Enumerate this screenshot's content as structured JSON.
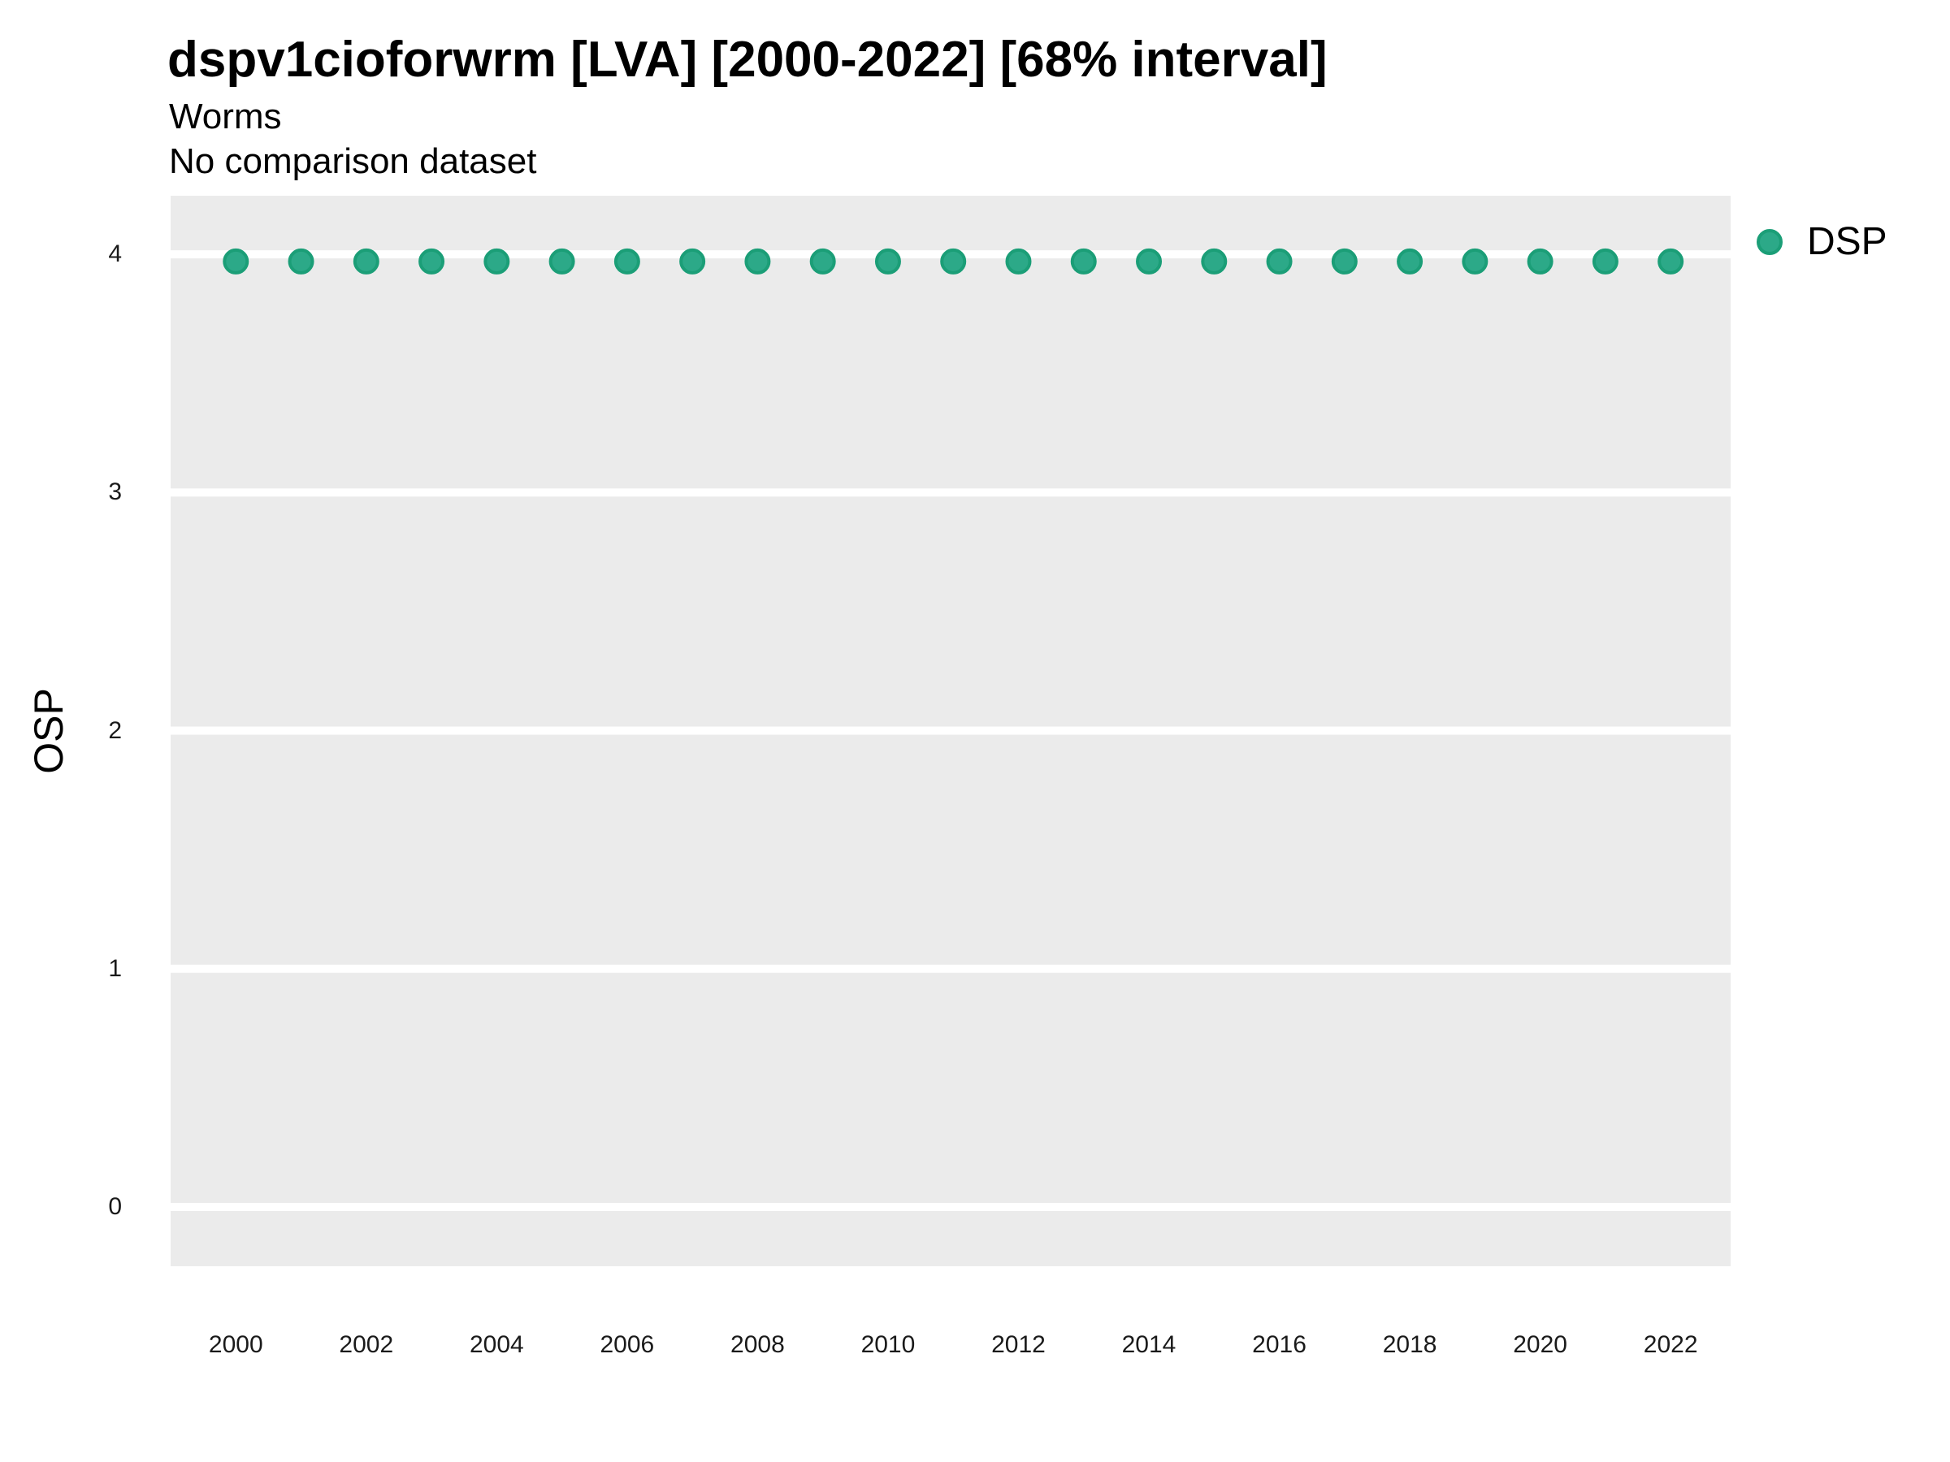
{
  "chart_data": {
    "type": "scatter",
    "title": "dspv1cioforwrm [LVA] [2000-2022] [68% interval]",
    "subtitle": [
      "Worms",
      "No comparison dataset"
    ],
    "xlabel": "",
    "ylabel": "OSP",
    "x": [
      2000,
      2001,
      2002,
      2003,
      2004,
      2005,
      2006,
      2007,
      2008,
      2009,
      2010,
      2011,
      2012,
      2013,
      2014,
      2015,
      2016,
      2017,
      2018,
      2019,
      2020,
      2021,
      2022
    ],
    "series": [
      {
        "name": "DSP",
        "values": [
          3.97,
          3.97,
          3.97,
          3.97,
          3.97,
          3.97,
          3.97,
          3.97,
          3.97,
          3.97,
          3.97,
          3.97,
          3.97,
          3.97,
          3.97,
          3.97,
          3.97,
          3.97,
          3.97,
          3.97,
          3.97,
          3.97,
          3.97
        ]
      }
    ],
    "xticks": [
      2000,
      2002,
      2004,
      2006,
      2008,
      2010,
      2012,
      2014,
      2016,
      2018,
      2020,
      2022
    ],
    "yticks": [
      0,
      1,
      2,
      3,
      4
    ],
    "xlim": [
      1999.0,
      2022.92
    ],
    "ylim": [
      -0.249,
      4.246
    ],
    "grid": {
      "horizontal": true,
      "vertical": false,
      "color": "#FFFFFF",
      "width": 10
    },
    "panel_bg": "#EBEBEB",
    "point": {
      "fill": "#2CA988",
      "stroke": "#1B9E77",
      "radius": 14,
      "stroke_width": 4
    },
    "legend": {
      "position": "right-top",
      "entries": [
        {
          "label": "DSP",
          "fill": "#2CA988",
          "stroke": "#1B9E77"
        }
      ]
    }
  }
}
